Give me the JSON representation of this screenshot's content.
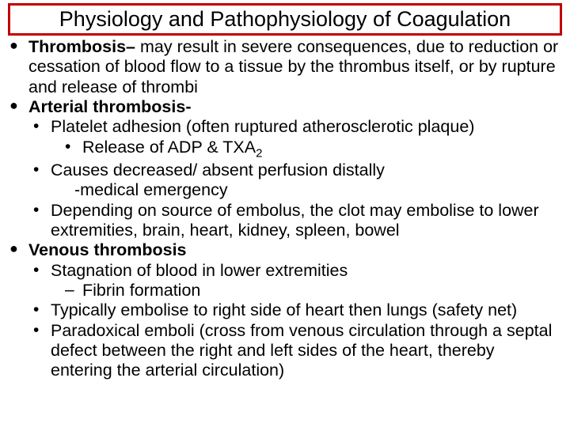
{
  "title": "Physiology and Pathophysiology of Coagulation",
  "slide": {
    "title_border_color": "#c00000",
    "title_fontsize": 27,
    "body_fontsize": 21.5,
    "background": "#ffffff",
    "text_color": "#000000"
  },
  "b1": {
    "lead": "Thrombosis–",
    "rest": " may result in severe consequences, due to reduction or cessation of blood flow to a tissue by the thrombus itself, or by rupture and release of thrombi"
  },
  "b2": {
    "lead": "Arterial thrombosis-",
    "s1": "Platelet adhesion (often ruptured atherosclerotic plaque)",
    "s1a_pre": "Release of ADP & TXA",
    "s1a_sub": "2",
    "s2": "Causes decreased/ absent perfusion distally",
    "s2a": "-medical emergency",
    "s3": "Depending on source of embolus, the clot may embolise to lower extremities, brain, heart, kidney, spleen, bowel"
  },
  "b3": {
    "lead": "Venous thrombosis",
    "s1": "Stagnation of blood in lower extremities",
    "s1a": "Fibrin formation",
    "s2": "Typically embolise to right side of heart then lungs (safety net)",
    "s3": "Paradoxical emboli (cross from venous circulation through a septal defect between the right and left sides of the heart, thereby entering the arterial circulation)"
  }
}
